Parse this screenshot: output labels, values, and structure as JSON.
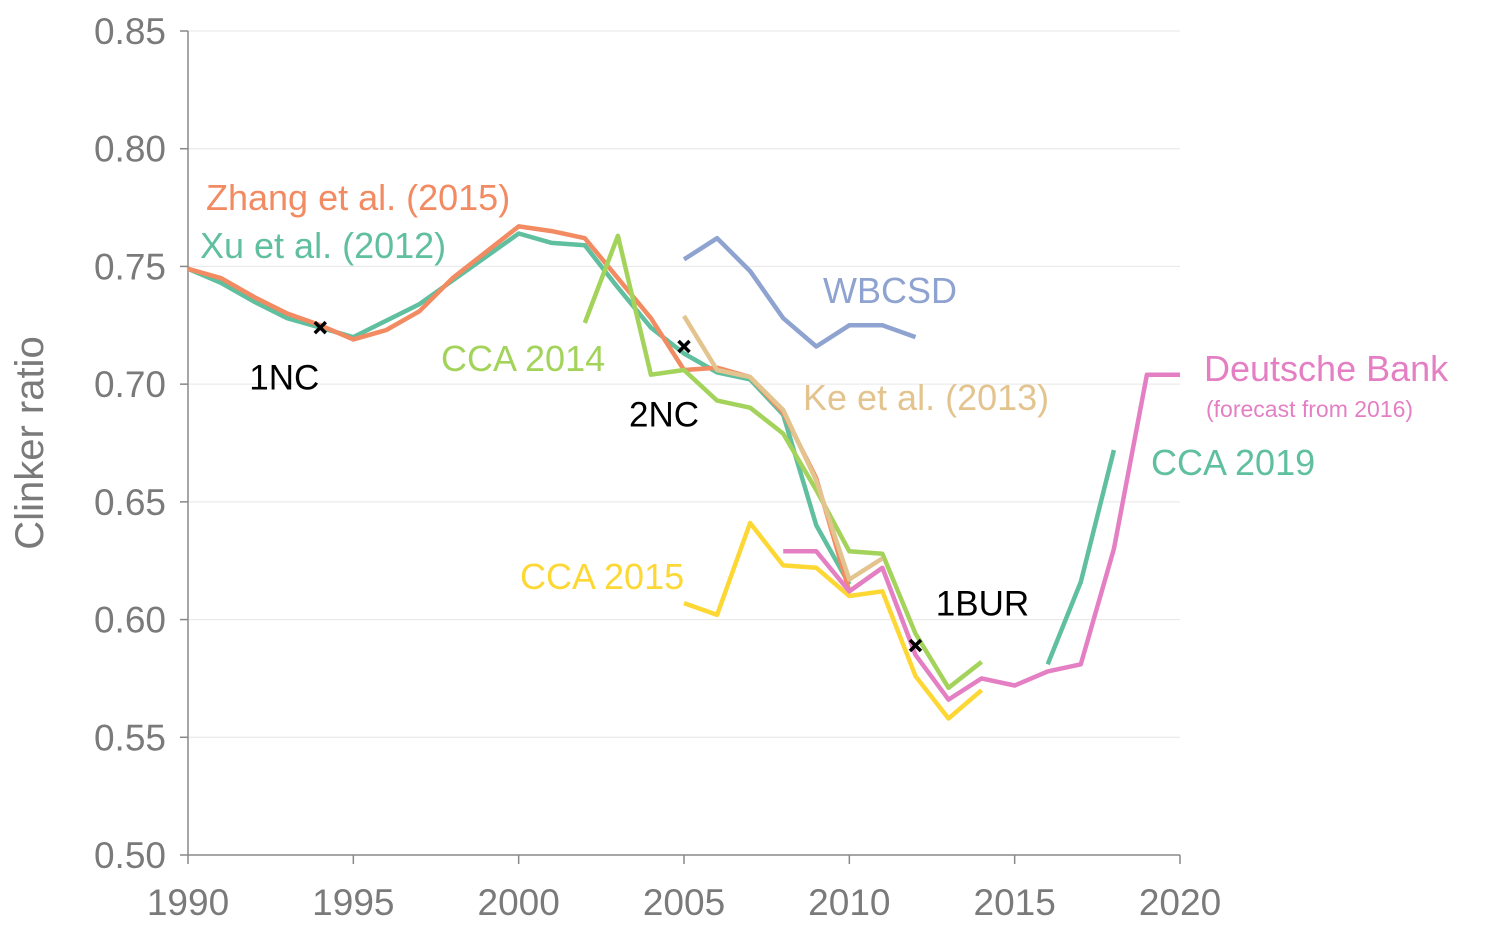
{
  "chart_data": {
    "type": "line",
    "title": "",
    "xlabel": "",
    "ylabel": "Clinker ratio",
    "xlim": [
      1990,
      2020
    ],
    "ylim": [
      0.5,
      0.85
    ],
    "xticks": [
      "1990",
      "1995",
      "2000",
      "2005",
      "2010",
      "2015",
      "2020"
    ],
    "yticks": [
      "0.50",
      "0.55",
      "0.60",
      "0.65",
      "0.70",
      "0.75",
      "0.80",
      "0.85"
    ],
    "grid": true,
    "series": [
      {
        "name": "Xu et al. (2012)",
        "color": "#5fbf9f",
        "x": [
          1990,
          1991,
          1992,
          1993,
          1994,
          1995,
          1996,
          1997,
          1998,
          1999,
          2000,
          2001,
          2002,
          2003,
          2004,
          2005,
          2006,
          2007,
          2008,
          2009,
          2010
        ],
        "y": [
          0.749,
          0.743,
          0.735,
          0.728,
          0.724,
          0.72,
          0.727,
          0.734,
          0.744,
          0.754,
          0.764,
          0.76,
          0.759,
          0.741,
          0.724,
          0.713,
          0.705,
          0.702,
          0.687,
          0.64,
          0.615
        ]
      },
      {
        "name": "Zhang et al. (2015)",
        "color": "#f28a62",
        "x": [
          1990,
          1991,
          1992,
          1993,
          1994,
          1995,
          1996,
          1997,
          1998,
          1999,
          2000,
          2001,
          2002,
          2003,
          2004,
          2005,
          2006,
          2007,
          2008,
          2009,
          2010,
          2011
        ],
        "y": [
          0.749,
          0.745,
          0.737,
          0.73,
          0.725,
          0.719,
          0.723,
          0.731,
          0.745,
          0.756,
          0.767,
          0.765,
          0.762,
          0.745,
          0.728,
          0.706,
          0.707,
          0.703,
          0.688,
          0.66,
          0.612,
          0.622
        ]
      },
      {
        "name": "CCA 2014",
        "color": "#a3d35a",
        "x": [
          2002,
          2003,
          2004,
          2005,
          2006,
          2007,
          2008,
          2009,
          2010,
          2011,
          2012,
          2013,
          2014
        ],
        "y": [
          0.726,
          0.763,
          0.704,
          0.706,
          0.693,
          0.69,
          0.679,
          0.655,
          0.629,
          0.628,
          0.594,
          0.571,
          0.582
        ]
      },
      {
        "name": "Ke et al. (2013)",
        "color": "#e3c48f",
        "x": [
          2005,
          2006,
          2007,
          2008,
          2009,
          2010,
          2011
        ],
        "y": [
          0.729,
          0.706,
          0.703,
          0.689,
          0.659,
          0.617,
          0.626
        ]
      },
      {
        "name": "WBCSD",
        "color": "#8fa3d0",
        "x": [
          2005,
          2006,
          2007,
          2008,
          2009,
          2010,
          2011,
          2012
        ],
        "y": [
          0.753,
          0.762,
          0.748,
          0.728,
          0.716,
          0.725,
          0.725,
          0.72
        ]
      },
      {
        "name": "CCA 2015",
        "color": "#fdd835",
        "x": [
          2005,
          2006,
          2007,
          2008,
          2009,
          2010,
          2011,
          2012,
          2013,
          2014
        ],
        "y": [
          0.607,
          0.602,
          0.641,
          0.623,
          0.622,
          0.61,
          0.612,
          0.576,
          0.558,
          0.57
        ]
      },
      {
        "name": "Deutsche Bank",
        "sublabel": "(forecast from 2016)",
        "color": "#e47fc4",
        "x": [
          2008,
          2009,
          2010,
          2011,
          2012,
          2013,
          2014,
          2015,
          2016,
          2017,
          2018,
          2019,
          2020
        ],
        "y": [
          0.629,
          0.629,
          0.612,
          0.622,
          0.585,
          0.566,
          0.575,
          0.572,
          0.578,
          0.581,
          0.63,
          0.704,
          0.704
        ]
      },
      {
        "name": "CCA 2019",
        "color": "#5fbf9f",
        "x": [
          2016,
          2017,
          2018
        ],
        "y": [
          0.581,
          0.616,
          0.672
        ]
      }
    ],
    "markers": [
      {
        "name": "1NC",
        "x": 1994,
        "y": 0.724
      },
      {
        "name": "2NC",
        "x": 2005,
        "y": 0.716
      },
      {
        "name": "1BUR",
        "x": 2012,
        "y": 0.589
      }
    ]
  }
}
